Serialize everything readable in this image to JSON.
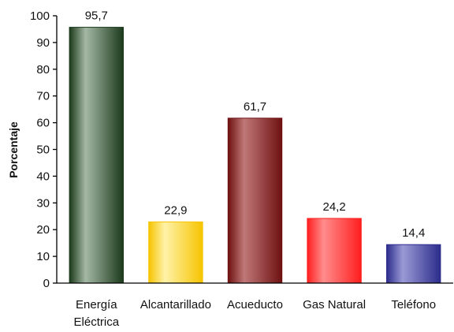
{
  "chart_data": {
    "type": "bar",
    "categories": [
      [
        "Energía",
        "Eléctrica"
      ],
      [
        "Alcantarillado"
      ],
      [
        "Acueducto"
      ],
      [
        "Gas Natural"
      ],
      [
        "Teléfono"
      ]
    ],
    "values": [
      95.7,
      22.9,
      61.7,
      24.2,
      14.4
    ],
    "data_labels": [
      "95,7",
      "22,9",
      "61,7",
      "24,2",
      "14,4"
    ],
    "bar_colors": [
      {
        "light": "#a4b8a4",
        "dark": "#1c3a1c"
      },
      {
        "light": "#fff2a8",
        "dark": "#f6c400"
      },
      {
        "light": "#c07878",
        "dark": "#6e1010"
      },
      {
        "light": "#ff8c8c",
        "dark": "#ff1e1e"
      },
      {
        "light": "#9a9ad6",
        "dark": "#2c2c8c"
      }
    ],
    "title": "",
    "xlabel": "",
    "ylabel": "Porcentaje",
    "ylim": [
      0,
      100
    ],
    "yticks": [
      0,
      10,
      20,
      30,
      40,
      50,
      60,
      70,
      80,
      90,
      100
    ],
    "grid": false,
    "legend": "none"
  }
}
